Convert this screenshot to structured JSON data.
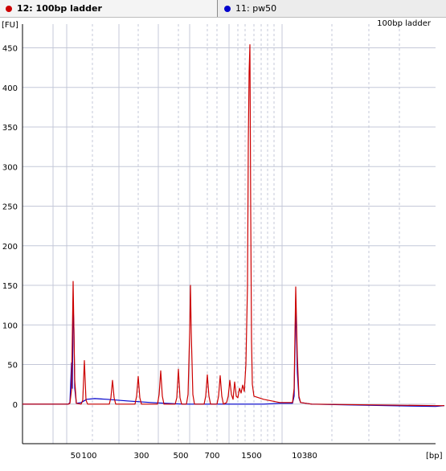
{
  "tabs": [
    {
      "label": "12: 100bp ladder",
      "color": "#cc0000",
      "active": true
    },
    {
      "label": "11: pw50",
      "color": "#0000cc",
      "active": false
    }
  ],
  "chart_data": {
    "type": "line",
    "title": "100bp ladder",
    "ylabel": "[FU]",
    "xlabel": "[bp]",
    "ylim": [
      -50,
      480
    ],
    "yticks": [
      0,
      50,
      100,
      150,
      200,
      250,
      300,
      350,
      400,
      450
    ],
    "xtick_labels": [
      "50",
      "100",
      "300",
      "500",
      "700",
      "1500",
      "10380"
    ],
    "grid": true,
    "series": [
      {
        "name": "12: 100bp ladder",
        "color": "#cc0000",
        "points": [
          [
            0,
            0
          ],
          [
            57,
            0
          ],
          [
            59,
            1
          ],
          [
            61,
            18
          ],
          [
            63,
            155
          ],
          [
            65,
            30
          ],
          [
            67,
            1
          ],
          [
            73,
            0
          ],
          [
            75,
            5
          ],
          [
            77,
            55
          ],
          [
            79,
            5
          ],
          [
            81,
            0
          ],
          [
            108,
            0
          ],
          [
            110,
            8
          ],
          [
            112,
            30
          ],
          [
            114,
            8
          ],
          [
            116,
            0
          ],
          [
            140,
            0
          ],
          [
            142,
            10
          ],
          [
            144,
            35
          ],
          [
            146,
            8
          ],
          [
            148,
            0
          ],
          [
            168,
            0
          ],
          [
            170,
            12
          ],
          [
            172,
            42
          ],
          [
            174,
            10
          ],
          [
            176,
            0
          ],
          [
            190,
            0
          ],
          [
            192,
            8
          ],
          [
            194,
            44
          ],
          [
            196,
            8
          ],
          [
            198,
            0
          ],
          [
            204,
            0
          ],
          [
            206,
            12
          ],
          [
            208,
            90
          ],
          [
            209,
            150
          ],
          [
            210,
            90
          ],
          [
            212,
            12
          ],
          [
            214,
            0
          ],
          [
            226,
            0
          ],
          [
            228,
            10
          ],
          [
            230,
            37
          ],
          [
            232,
            10
          ],
          [
            234,
            0
          ],
          [
            242,
            0
          ],
          [
            244,
            10
          ],
          [
            246,
            36
          ],
          [
            248,
            10
          ],
          [
            250,
            0
          ],
          [
            254,
            2
          ],
          [
            256,
            10
          ],
          [
            258,
            30
          ],
          [
            260,
            12
          ],
          [
            262,
            6
          ],
          [
            264,
            28
          ],
          [
            266,
            10
          ],
          [
            268,
            8
          ],
          [
            270,
            20
          ],
          [
            272,
            14
          ],
          [
            274,
            24
          ],
          [
            276,
            16
          ],
          [
            278,
            50
          ],
          [
            280,
            150
          ],
          [
            281,
            330
          ],
          [
            282,
            420
          ],
          [
            283,
            454
          ],
          [
            284,
            240
          ],
          [
            285,
            80
          ],
          [
            286,
            25
          ],
          [
            288,
            10
          ],
          [
            300,
            6
          ],
          [
            320,
            2
          ],
          [
            336,
            2
          ],
          [
            338,
            20
          ],
          [
            340,
            148
          ],
          [
            342,
            60
          ],
          [
            344,
            10
          ],
          [
            346,
            2
          ],
          [
            360,
            0
          ],
          [
            514,
            -2
          ],
          [
            525,
            -2
          ]
        ]
      },
      {
        "name": "11: pw50",
        "color": "#0000cc",
        "points": [
          [
            0,
            0
          ],
          [
            57,
            0
          ],
          [
            59,
            2
          ],
          [
            61,
            52
          ],
          [
            62,
            20
          ],
          [
            63,
            127
          ],
          [
            64,
            95
          ],
          [
            65,
            20
          ],
          [
            67,
            1
          ],
          [
            73,
            2
          ],
          [
            80,
            6
          ],
          [
            90,
            7
          ],
          [
            105,
            6
          ],
          [
            130,
            4
          ],
          [
            160,
            2
          ],
          [
            180,
            1
          ],
          [
            200,
            0
          ],
          [
            250,
            0
          ],
          [
            280,
            0
          ],
          [
            300,
            0
          ],
          [
            320,
            1
          ],
          [
            336,
            1
          ],
          [
            338,
            10
          ],
          [
            340,
            128
          ],
          [
            342,
            40
          ],
          [
            344,
            8
          ],
          [
            346,
            2
          ],
          [
            360,
            0
          ],
          [
            400,
            -1
          ],
          [
            514,
            -3
          ],
          [
            525,
            -2
          ]
        ]
      }
    ]
  }
}
